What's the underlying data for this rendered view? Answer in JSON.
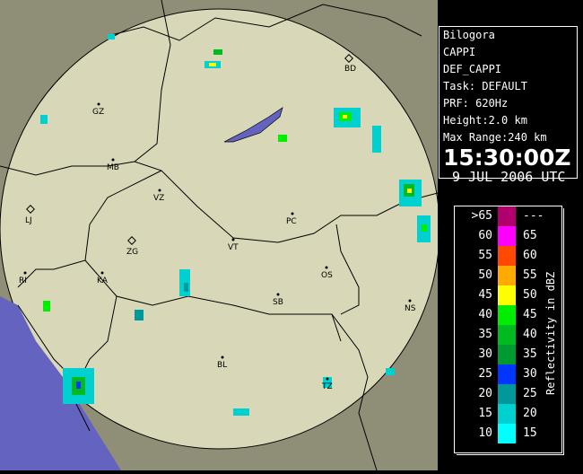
{
  "info": {
    "site": "Bilogora",
    "product": "CAPPI",
    "product_name": "DEF_CAPPI",
    "task": "Task: DEFAULT",
    "prf": "PRF: 620Hz",
    "height": "Height:2.0 km",
    "max_range": "Max Range:240 km",
    "time": "15:30:00Z",
    "date": "9 JUL 2006 UTC"
  },
  "legend": {
    "title": "Reflectivity in dBZ",
    "rows": [
      {
        "lo": ">65",
        "hi": "---",
        "color": "#b0006c"
      },
      {
        "lo": "60",
        "hi": "65",
        "color": "#ff00ff"
      },
      {
        "lo": "55",
        "hi": "60",
        "color": "#ff4800"
      },
      {
        "lo": "50",
        "hi": "55",
        "color": "#ffaa00"
      },
      {
        "lo": "45",
        "hi": "50",
        "color": "#ffff00"
      },
      {
        "lo": "40",
        "hi": "45",
        "color": "#00ee00"
      },
      {
        "lo": "35",
        "hi": "40",
        "color": "#00bb20"
      },
      {
        "lo": "30",
        "hi": "35",
        "color": "#009a30"
      },
      {
        "lo": "25",
        "hi": "30",
        "color": "#0036ff"
      },
      {
        "lo": "20",
        "hi": "25",
        "color": "#009898"
      },
      {
        "lo": "15",
        "hi": "20",
        "color": "#00d0d0"
      },
      {
        "lo": "10",
        "hi": "15",
        "color": "#00ffff"
      }
    ]
  },
  "cities": [
    {
      "code": "BD"
    },
    {
      "code": "GZ"
    },
    {
      "code": "MB"
    },
    {
      "code": "VZ"
    },
    {
      "code": "LJ"
    },
    {
      "code": "PC"
    },
    {
      "code": "ZG"
    },
    {
      "code": "VT"
    },
    {
      "code": "RI"
    },
    {
      "code": "KA"
    },
    {
      "code": "OS"
    },
    {
      "code": "NS"
    },
    {
      "code": "SB"
    },
    {
      "code": "BL"
    },
    {
      "code": "TZ"
    }
  ],
  "colors": {
    "outside": "#8f8f77",
    "range_circle": "#d8d8b8",
    "sea": "#6464c0"
  }
}
